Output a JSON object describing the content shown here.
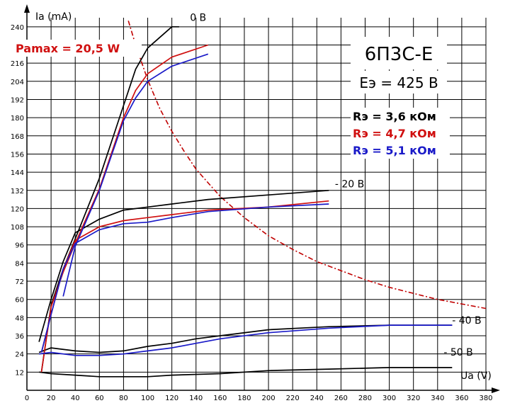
{
  "chart_data": {
    "type": "line",
    "title": "6П3С-Е",
    "subtitle": "Eэ = 425 В",
    "xlabel": "Ua (V)",
    "ylabel": "Ia (mA)",
    "xlim": [
      0,
      380
    ],
    "ylim": [
      0,
      246
    ],
    "x_ticks": [
      0,
      20,
      40,
      60,
      80,
      100,
      120,
      140,
      160,
      180,
      200,
      220,
      240,
      260,
      280,
      300,
      320,
      340,
      360,
      380
    ],
    "y_ticks": [
      12,
      24,
      36,
      48,
      60,
      72,
      84,
      96,
      108,
      120,
      132,
      144,
      156,
      168,
      180,
      192,
      204,
      216,
      228,
      240
    ],
    "grid": true,
    "pmax_label": "Pamax = 20,5 W",
    "legend": [
      {
        "label": "Rэ = 3,6 кОм",
        "color": "#000000"
      },
      {
        "label": "Rэ = 4,7 кОм",
        "color": "#d01010"
      },
      {
        "label": "Rэ = 5,1 кОм",
        "color": "#1a1ac8"
      }
    ],
    "curve_labels": [
      {
        "text": "0 В",
        "x": 135,
        "y": 244
      },
      {
        "text": "- 20 В",
        "x": 255,
        "y": 134
      },
      {
        "text": "- 40 В",
        "x": 352,
        "y": 44
      },
      {
        "text": "- 50 В",
        "x": 345,
        "y": 23
      }
    ],
    "pmax_curve": {
      "color": "#c00000",
      "points": [
        [
          84,
          244
        ],
        [
          90,
          228
        ],
        [
          100,
          205
        ],
        [
          110,
          186
        ],
        [
          120,
          171
        ],
        [
          130,
          158
        ],
        [
          140,
          146
        ],
        [
          150,
          137
        ],
        [
          160,
          128
        ],
        [
          170,
          121
        ],
        [
          180,
          114
        ],
        [
          200,
          102
        ],
        [
          220,
          93
        ],
        [
          240,
          85
        ],
        [
          260,
          79
        ],
        [
          280,
          73
        ],
        [
          300,
          68
        ],
        [
          320,
          64
        ],
        [
          340,
          60
        ],
        [
          360,
          57
        ],
        [
          380,
          54
        ]
      ]
    },
    "series": [
      {
        "color": "#000000",
        "values": [
          [
            12,
            12
          ],
          [
            20,
            56
          ],
          [
            30,
            80
          ],
          [
            40,
            100
          ],
          [
            60,
            140
          ],
          [
            80,
            188
          ],
          [
            90,
            212
          ],
          [
            100,
            226
          ],
          [
            120,
            240
          ],
          [
            126,
            240
          ]
        ]
      },
      {
        "color": "#000000",
        "values": [
          [
            10,
            32
          ],
          [
            20,
            60
          ],
          [
            30,
            85
          ],
          [
            40,
            104
          ],
          [
            60,
            113
          ],
          [
            80,
            119
          ],
          [
            100,
            121
          ],
          [
            120,
            123
          ],
          [
            150,
            126
          ],
          [
            200,
            129
          ],
          [
            250,
            132
          ]
        ]
      },
      {
        "color": "#000000",
        "values": [
          [
            10,
            25
          ],
          [
            20,
            28
          ],
          [
            40,
            26
          ],
          [
            60,
            25
          ],
          [
            80,
            26
          ],
          [
            100,
            29
          ],
          [
            120,
            31
          ],
          [
            140,
            34
          ],
          [
            160,
            36
          ],
          [
            200,
            40
          ],
          [
            250,
            42
          ],
          [
            300,
            43
          ],
          [
            352,
            43
          ]
        ]
      },
      {
        "color": "#000000",
        "values": [
          [
            10,
            12
          ],
          [
            20,
            11
          ],
          [
            40,
            10
          ],
          [
            60,
            9
          ],
          [
            80,
            9
          ],
          [
            100,
            9
          ],
          [
            120,
            10
          ],
          [
            160,
            11
          ],
          [
            200,
            13
          ],
          [
            250,
            14
          ],
          [
            300,
            15
          ],
          [
            352,
            15
          ]
        ]
      },
      {
        "color": "#d01010",
        "values": [
          [
            12,
            12
          ],
          [
            20,
            55
          ],
          [
            30,
            78
          ],
          [
            40,
            97
          ],
          [
            60,
            133
          ],
          [
            80,
            180
          ],
          [
            90,
            198
          ],
          [
            100,
            209
          ],
          [
            120,
            220
          ],
          [
            150,
            228
          ]
        ]
      },
      {
        "color": "#d01010",
        "values": [
          [
            12,
            25
          ],
          [
            20,
            50
          ],
          [
            30,
            80
          ],
          [
            40,
            99
          ],
          [
            60,
            108
          ],
          [
            80,
            112
          ],
          [
            100,
            114
          ],
          [
            120,
            116
          ],
          [
            150,
            119
          ],
          [
            200,
            121
          ],
          [
            250,
            125
          ]
        ]
      },
      {
        "color": "#1a1ac8",
        "values": [
          [
            30,
            62
          ],
          [
            40,
            95
          ],
          [
            60,
            132
          ],
          [
            80,
            178
          ],
          [
            90,
            193
          ],
          [
            100,
            204
          ],
          [
            120,
            214
          ],
          [
            150,
            222
          ]
        ]
      },
      {
        "color": "#1a1ac8",
        "values": [
          [
            12,
            25
          ],
          [
            20,
            50
          ],
          [
            30,
            80
          ],
          [
            40,
            97
          ],
          [
            60,
            106
          ],
          [
            80,
            110
          ],
          [
            100,
            111
          ],
          [
            120,
            114
          ],
          [
            150,
            118
          ],
          [
            200,
            121
          ],
          [
            250,
            123
          ]
        ]
      },
      {
        "color": "#1a1ac8",
        "values": [
          [
            10,
            24
          ],
          [
            20,
            25
          ],
          [
            40,
            23
          ],
          [
            60,
            23
          ],
          [
            80,
            24
          ],
          [
            100,
            26
          ],
          [
            120,
            28
          ],
          [
            140,
            31
          ],
          [
            160,
            34
          ],
          [
            200,
            38
          ],
          [
            250,
            41
          ],
          [
            300,
            43
          ],
          [
            352,
            43
          ]
        ]
      }
    ]
  }
}
